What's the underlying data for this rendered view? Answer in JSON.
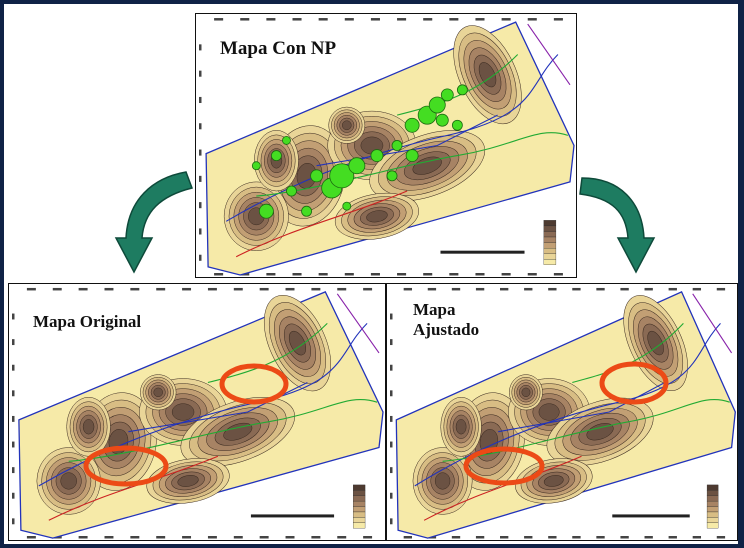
{
  "panels": {
    "top": {
      "title": "Mapa Con NP"
    },
    "bottom_left": {
      "title": "Mapa Original"
    },
    "bottom_right": {
      "title": "Mapa\nAjustado"
    }
  },
  "colors": {
    "frame": "#0f2246",
    "map_background": "#f6eaa8",
    "contour_dark": "#5b4636",
    "well_bubbles": "#44dd22",
    "highlight_ellipse": "#ec4a16",
    "arrow_fill": "#1e7c61",
    "fault_lines": "#2233bb"
  },
  "icons": [
    "curved-arrow-left-icon",
    "curved-arrow-right-icon"
  ]
}
